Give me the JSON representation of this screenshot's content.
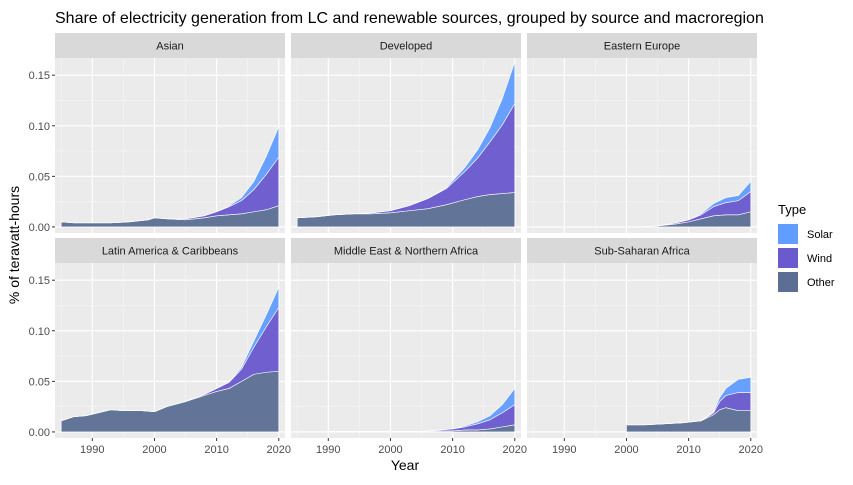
{
  "chart_data": {
    "type": "area",
    "title": "Share of electricity generation from LC and renewable sources, grouped by source and macroregion",
    "xlabel": "Year",
    "ylabel": "% of teravatt-hours",
    "xlim": [
      1984,
      2021
    ],
    "ylim": [
      -0.006,
      0.167
    ],
    "x_ticks": [
      1990,
      2000,
      2010,
      2020
    ],
    "x_tick_labels": [
      "1990",
      "2000",
      "2010",
      "2020"
    ],
    "y_ticks": [
      0,
      0.05,
      0.1,
      0.15
    ],
    "y_tick_labels": [
      "0.00",
      "0.05",
      "0.10",
      "0.15"
    ],
    "stacked": true,
    "grid": true,
    "facet_layout": {
      "rows": 2,
      "cols": 3
    },
    "legend": {
      "title": "Type",
      "position": "right",
      "entries": [
        {
          "name": "Solar",
          "color": "#619CFF"
        },
        {
          "name": "Wind",
          "color": "#6A5ACD"
        },
        {
          "name": "Other",
          "color": "#5D6E95"
        }
      ]
    },
    "colors": {
      "Solar": "#619CFF",
      "Wind": "#6A5ACD",
      "Other": "#5D6E95",
      "panel_bg": "#EBEBEB",
      "strip_bg": "#D9D9D9"
    },
    "panels": [
      {
        "name": "Asian",
        "series": [
          {
            "name": "Other",
            "x": [
              1985,
              1987,
              1990,
              1993,
              1996,
              1999,
              2000,
              2002,
              2005,
              2008,
              2010,
              2012,
              2014,
              2016,
              2018,
              2020
            ],
            "values": [
              0.005,
              0.004,
              0.004,
              0.004,
              0.005,
              0.007,
              0.009,
              0.008,
              0.007,
              0.009,
              0.011,
              0.012,
              0.013,
              0.015,
              0.017,
              0.021
            ]
          },
          {
            "name": "Wind",
            "x": [
              1985,
              1987,
              1990,
              1993,
              1996,
              1999,
              2000,
              2002,
              2005,
              2008,
              2010,
              2012,
              2014,
              2016,
              2018,
              2020
            ],
            "values": [
              0,
              0,
              0,
              0,
              0,
              0,
              0,
              0,
              0.001,
              0.002,
              0.004,
              0.008,
              0.013,
              0.022,
              0.035,
              0.048
            ]
          },
          {
            "name": "Solar",
            "x": [
              1985,
              1987,
              1990,
              1993,
              1996,
              1999,
              2000,
              2002,
              2005,
              2008,
              2010,
              2012,
              2014,
              2016,
              2018,
              2020
            ],
            "values": [
              0,
              0,
              0,
              0,
              0,
              0,
              0,
              0,
              0,
              0,
              0,
              0.001,
              0.003,
              0.008,
              0.018,
              0.03
            ]
          }
        ]
      },
      {
        "name": "Developed",
        "series": [
          {
            "name": "Other",
            "x": [
              1985,
              1988,
              1991,
              1994,
              1997,
              2000,
              2003,
              2006,
              2009,
              2012,
              2014,
              2016,
              2018,
              2020
            ],
            "values": [
              0.009,
              0.01,
              0.012,
              0.013,
              0.013,
              0.014,
              0.016,
              0.018,
              0.022,
              0.027,
              0.03,
              0.032,
              0.033,
              0.034
            ]
          },
          {
            "name": "Wind",
            "x": [
              1985,
              1988,
              1991,
              1994,
              1997,
              2000,
              2003,
              2006,
              2009,
              2012,
              2014,
              2016,
              2018,
              2020
            ],
            "values": [
              0,
              0,
              0,
              0,
              0.001,
              0.002,
              0.005,
              0.01,
              0.016,
              0.028,
              0.038,
              0.052,
              0.068,
              0.088
            ]
          },
          {
            "name": "Solar",
            "x": [
              1985,
              1988,
              1991,
              1994,
              1997,
              2000,
              2003,
              2006,
              2009,
              2012,
              2014,
              2016,
              2018,
              2020
            ],
            "values": [
              0,
              0,
              0,
              0,
              0,
              0,
              0,
              0,
              0.001,
              0.004,
              0.008,
              0.014,
              0.026,
              0.041
            ]
          }
        ]
      },
      {
        "name": "Eastern Europe",
        "series": [
          {
            "name": "Other",
            "x": [
              2002,
              2005,
              2008,
              2010,
              2012,
              2014,
              2016,
              2018,
              2020
            ],
            "values": [
              0,
              0.001,
              0.003,
              0.005,
              0.008,
              0.011,
              0.012,
              0.012,
              0.015
            ]
          },
          {
            "name": "Wind",
            "x": [
              2002,
              2005,
              2008,
              2010,
              2012,
              2014,
              2016,
              2018,
              2020
            ],
            "values": [
              0,
              0,
              0.001,
              0.002,
              0.004,
              0.009,
              0.012,
              0.014,
              0.02
            ]
          },
          {
            "name": "Solar",
            "x": [
              2002,
              2005,
              2008,
              2010,
              2012,
              2014,
              2016,
              2018,
              2020
            ],
            "values": [
              0,
              0,
              0,
              0,
              0.001,
              0.003,
              0.005,
              0.005,
              0.01
            ]
          }
        ]
      },
      {
        "name": "Latin America & Caribbeans",
        "series": [
          {
            "name": "Other",
            "x": [
              1985,
              1987,
              1989,
              1991,
              1993,
              1995,
              1998,
              2000,
              2002,
              2005,
              2008,
              2010,
              2012,
              2014,
              2016,
              2018,
              2020
            ],
            "values": [
              0.011,
              0.015,
              0.016,
              0.019,
              0.022,
              0.021,
              0.021,
              0.02,
              0.025,
              0.03,
              0.036,
              0.04,
              0.043,
              0.05,
              0.057,
              0.059,
              0.06
            ]
          },
          {
            "name": "Wind",
            "x": [
              1985,
              1987,
              1989,
              1991,
              1993,
              1995,
              1998,
              2000,
              2002,
              2005,
              2008,
              2010,
              2012,
              2014,
              2016,
              2018,
              2020
            ],
            "values": [
              0,
              0,
              0,
              0,
              0,
              0,
              0,
              0,
              0,
              0,
              0.001,
              0.003,
              0.006,
              0.012,
              0.027,
              0.045,
              0.063
            ]
          },
          {
            "name": "Solar",
            "x": [
              1985,
              1987,
              1989,
              1991,
              1993,
              1995,
              1998,
              2000,
              2002,
              2005,
              2008,
              2010,
              2012,
              2014,
              2016,
              2018,
              2020
            ],
            "values": [
              0,
              0,
              0,
              0,
              0,
              0,
              0,
              0,
              0,
              0,
              0,
              0,
              0,
              0.002,
              0.006,
              0.012,
              0.02
            ]
          }
        ]
      },
      {
        "name": "Middle East & Northern Africa",
        "series": [
          {
            "name": "Other",
            "x": [
              1990,
              1995,
              2000,
              2005,
              2008,
              2010,
              2012,
              2014,
              2016,
              2018,
              2020
            ],
            "values": [
              0.0005,
              0.0005,
              0.0005,
              0.0005,
              0.001,
              0.001,
              0.002,
              0.002,
              0.003,
              0.005,
              0.007
            ]
          },
          {
            "name": "Wind",
            "x": [
              1990,
              1995,
              2000,
              2005,
              2008,
              2010,
              2012,
              2014,
              2016,
              2018,
              2020
            ],
            "values": [
              0,
              0,
              0,
              0,
              0.001,
              0.002,
              0.003,
              0.006,
              0.009,
              0.014,
              0.02
            ]
          },
          {
            "name": "Solar",
            "x": [
              1990,
              1995,
              2000,
              2005,
              2008,
              2010,
              2012,
              2014,
              2016,
              2018,
              2020
            ],
            "values": [
              0,
              0,
              0,
              0,
              0,
              0,
              0.001,
              0.002,
              0.004,
              0.008,
              0.016
            ]
          }
        ]
      },
      {
        "name": "Sub-Saharan Africa",
        "series": [
          {
            "name": "Other",
            "x": [
              2000,
              2003,
              2006,
              2009,
              2012,
              2014,
              2015,
              2016,
              2018,
              2020
            ],
            "values": [
              0.007,
              0.007,
              0.008,
              0.009,
              0.011,
              0.017,
              0.022,
              0.024,
              0.021,
              0.021
            ]
          },
          {
            "name": "Wind",
            "x": [
              2000,
              2003,
              2006,
              2009,
              2012,
              2014,
              2015,
              2016,
              2018,
              2020
            ],
            "values": [
              0,
              0,
              0,
              0,
              0,
              0.002,
              0.008,
              0.012,
              0.018,
              0.018
            ]
          },
          {
            "name": "Solar",
            "x": [
              2000,
              2003,
              2006,
              2009,
              2012,
              2014,
              2015,
              2016,
              2018,
              2020
            ],
            "values": [
              0,
              0,
              0,
              0,
              0,
              0.001,
              0.004,
              0.007,
              0.013,
              0.015
            ]
          }
        ]
      }
    ]
  }
}
